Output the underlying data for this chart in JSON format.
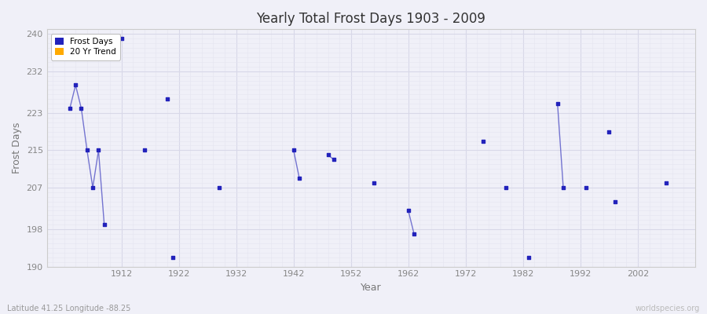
{
  "title": "Yearly Total Frost Days 1903 - 2009",
  "xlabel": "Year",
  "ylabel": "Frost Days",
  "ylim": [
    190,
    241
  ],
  "xlim": [
    1899,
    2012
  ],
  "yticks": [
    190,
    198,
    207,
    215,
    223,
    232,
    240
  ],
  "xticks": [
    1912,
    1922,
    1932,
    1942,
    1952,
    1962,
    1972,
    1982,
    1992,
    2002
  ],
  "bg_color": "#f0f0f8",
  "plot_bg": "#f0f0f8",
  "grid_color_major": "#d8d8e8",
  "grid_color_minor": "#e4e4f0",
  "dot_color": "#2222bb",
  "line_color": "#6666cc",
  "legend_dot_color": "#2222bb",
  "legend_trend_color": "#ffaa00",
  "frost_data": [
    [
      1903,
      224
    ],
    [
      1904,
      229
    ],
    [
      1905,
      224
    ],
    [
      1906,
      215
    ],
    [
      1907,
      207
    ],
    [
      1908,
      215
    ],
    [
      1909,
      199
    ],
    [
      1912,
      239
    ],
    [
      1916,
      215
    ],
    [
      1920,
      226
    ],
    [
      1921,
      192
    ],
    [
      1929,
      207
    ],
    [
      1942,
      215
    ],
    [
      1943,
      209
    ],
    [
      1948,
      214
    ],
    [
      1949,
      213
    ],
    [
      1956,
      208
    ],
    [
      1962,
      202
    ],
    [
      1963,
      197
    ],
    [
      1975,
      217
    ],
    [
      1979,
      207
    ],
    [
      1983,
      192
    ],
    [
      1988,
      225
    ],
    [
      1989,
      207
    ],
    [
      1993,
      207
    ],
    [
      1997,
      219
    ],
    [
      1998,
      204
    ],
    [
      2007,
      208
    ]
  ],
  "connected_segments": [
    [
      1903,
      1904,
      1905,
      1906,
      1907,
      1908,
      1909
    ],
    [
      1942,
      1943
    ],
    [
      1948,
      1949
    ],
    [
      1962,
      1963
    ],
    [
      1988,
      1989
    ]
  ],
  "watermark": "worldspecies.org",
  "footer": "Latitude 41.25 Longitude -88.25"
}
